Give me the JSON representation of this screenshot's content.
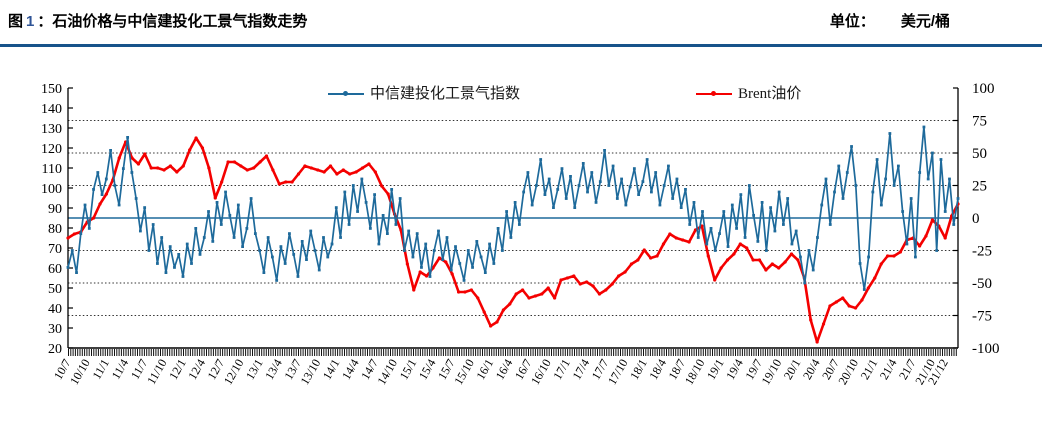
{
  "header": {
    "fig_label": "图",
    "fig_number": "1",
    "title_rest": "：石油价格与中信建投化工景气指数走势",
    "unit_label": "单位：",
    "unit_value": "美元/桶"
  },
  "legend": [
    {
      "label": "中信建投化工景气指数",
      "color": "#1E6A9B"
    },
    {
      "label": "Brent油价",
      "color": "#F40000"
    }
  ],
  "colors": {
    "divider": "#17538A",
    "grid": "#333333",
    "axis": "#000000",
    "zero_line": "#1E6A9B",
    "title_number": "#2F5496"
  },
  "chart_data": {
    "type": "line",
    "title": "石油价格与中信建投化工景气指数走势",
    "x_start": "2010/07",
    "x_end": "2022/02",
    "x_month_span": 139,
    "grid": "horizontal-dashed",
    "legend_position": "top-inside",
    "axes": {
      "left": {
        "min": 20,
        "max": 150,
        "step": 10,
        "series": "Brent油价",
        "unit": "美元/桶"
      },
      "right": {
        "min": -100,
        "max": 100,
        "step": 25,
        "series": "中信建投化工景气指数"
      }
    },
    "gridlines_right_values": [
      75,
      50,
      25,
      -25,
      -50,
      -75
    ],
    "zero_line_right_value": 0,
    "x_tick_labels": [
      "10/7",
      "10/10",
      "11/1",
      "11/4",
      "11/7",
      "11/10",
      "12/1",
      "12/4",
      "12/7",
      "12/10",
      "13/1",
      "13/4",
      "13/7",
      "13/10",
      "14/1",
      "14/4",
      "14/7",
      "14/10",
      "15/1",
      "15/4",
      "15/7",
      "15/10",
      "16/1",
      "16/4",
      "16/7",
      "16/10",
      "17/1",
      "17/4",
      "17/7",
      "17/10",
      "18/1",
      "18/4",
      "18/7",
      "18/10",
      "19/1",
      "19/4",
      "19/7",
      "19/10",
      "20/1",
      "20/4",
      "20/7",
      "20/10",
      "21/1",
      "21/4",
      "21/7",
      "21/10",
      "21/12"
    ],
    "x_tick_month_offsets": [
      0,
      3,
      6,
      9,
      12,
      15,
      18,
      21,
      24,
      27,
      30,
      33,
      36,
      39,
      42,
      45,
      48,
      51,
      54,
      57,
      60,
      63,
      66,
      69,
      72,
      75,
      78,
      81,
      84,
      87,
      90,
      93,
      96,
      99,
      102,
      105,
      108,
      111,
      114,
      117,
      120,
      123,
      126,
      129,
      132,
      135,
      137
    ],
    "series": [
      {
        "name": "Brent油价",
        "axis": "left",
        "color": "#F40000",
        "marker": "circle",
        "sampling": "monthly",
        "values": [
          75,
          77,
          78,
          83,
          85,
          92,
          97,
          104,
          115,
          123,
          115,
          112,
          117,
          110,
          110,
          109,
          111,
          108,
          111,
          119,
          125,
          120,
          110,
          95,
          103,
          113,
          113,
          111,
          109,
          110,
          113,
          116,
          109,
          102,
          103,
          103,
          107,
          111,
          110,
          109,
          108,
          111,
          107,
          109,
          107,
          108,
          110,
          112,
          108,
          101,
          97,
          87,
          79,
          62,
          49,
          58,
          56,
          60,
          65,
          63,
          57,
          48,
          48,
          49,
          45,
          38,
          31,
          33,
          39,
          42,
          47,
          49,
          45,
          46,
          47,
          50,
          45,
          54,
          55,
          56,
          52,
          53,
          51,
          47,
          49,
          52,
          56,
          58,
          62,
          64,
          69,
          65,
          66,
          72,
          77,
          75,
          74,
          73,
          79,
          81,
          66,
          54,
          60,
          64,
          67,
          72,
          70,
          64,
          64,
          59,
          62,
          60,
          63,
          67,
          64,
          55,
          34,
          23,
          32,
          41,
          43,
          45,
          41,
          40,
          44,
          50,
          55,
          62,
          66,
          66,
          68,
          74,
          75,
          71,
          76,
          84,
          81,
          75,
          86,
          92
        ]
      },
      {
        "name": "中信建投化工景气指数",
        "axis": "right",
        "color": "#1E6A9B",
        "marker": "square",
        "sampling": "approx-3-week",
        "values": [
          -38,
          -25,
          -42,
          -12,
          10,
          -8,
          22,
          35,
          18,
          30,
          52,
          25,
          10,
          38,
          62,
          35,
          15,
          -10,
          8,
          -25,
          -5,
          -35,
          -15,
          -42,
          -22,
          -38,
          -28,
          -45,
          -20,
          -35,
          -8,
          -28,
          -15,
          5,
          -18,
          12,
          -5,
          20,
          2,
          -15,
          10,
          -22,
          -8,
          15,
          -12,
          -25,
          -42,
          -15,
          -30,
          -48,
          -22,
          -35,
          -12,
          -28,
          -45,
          -18,
          -32,
          -10,
          -25,
          -40,
          -15,
          -30,
          -20,
          8,
          -15,
          20,
          -5,
          25,
          5,
          30,
          12,
          -8,
          18,
          -20,
          2,
          -12,
          22,
          -5,
          15,
          -25,
          -10,
          -30,
          -12,
          -38,
          -20,
          -45,
          -25,
          -10,
          -32,
          -15,
          -40,
          -22,
          -35,
          -48,
          -25,
          -38,
          -18,
          -30,
          -42,
          -20,
          -35,
          -8,
          -25,
          5,
          -15,
          12,
          -5,
          20,
          35,
          10,
          25,
          45,
          18,
          30,
          8,
          22,
          38,
          15,
          32,
          8,
          25,
          42,
          20,
          35,
          12,
          28,
          52,
          25,
          40,
          15,
          30,
          10,
          24,
          38,
          18,
          28,
          45,
          20,
          35,
          10,
          25,
          40,
          15,
          30,
          8,
          22,
          -5,
          12,
          -15,
          5,
          -20,
          -8,
          -25,
          -12,
          5,
          -22,
          10,
          -8,
          18,
          -15,
          25,
          2,
          -18,
          12,
          -25,
          8,
          -10,
          20,
          -5,
          15,
          -20,
          -10,
          -30,
          -50,
          -25,
          -40,
          -15,
          10,
          30,
          -5,
          20,
          40,
          15,
          35,
          55,
          25,
          -35,
          -55,
          -30,
          20,
          45,
          10,
          30,
          65,
          25,
          40,
          5,
          -20,
          15,
          -30,
          35,
          70,
          30,
          50,
          -25,
          45,
          5,
          30,
          -5,
          15
        ]
      }
    ]
  }
}
